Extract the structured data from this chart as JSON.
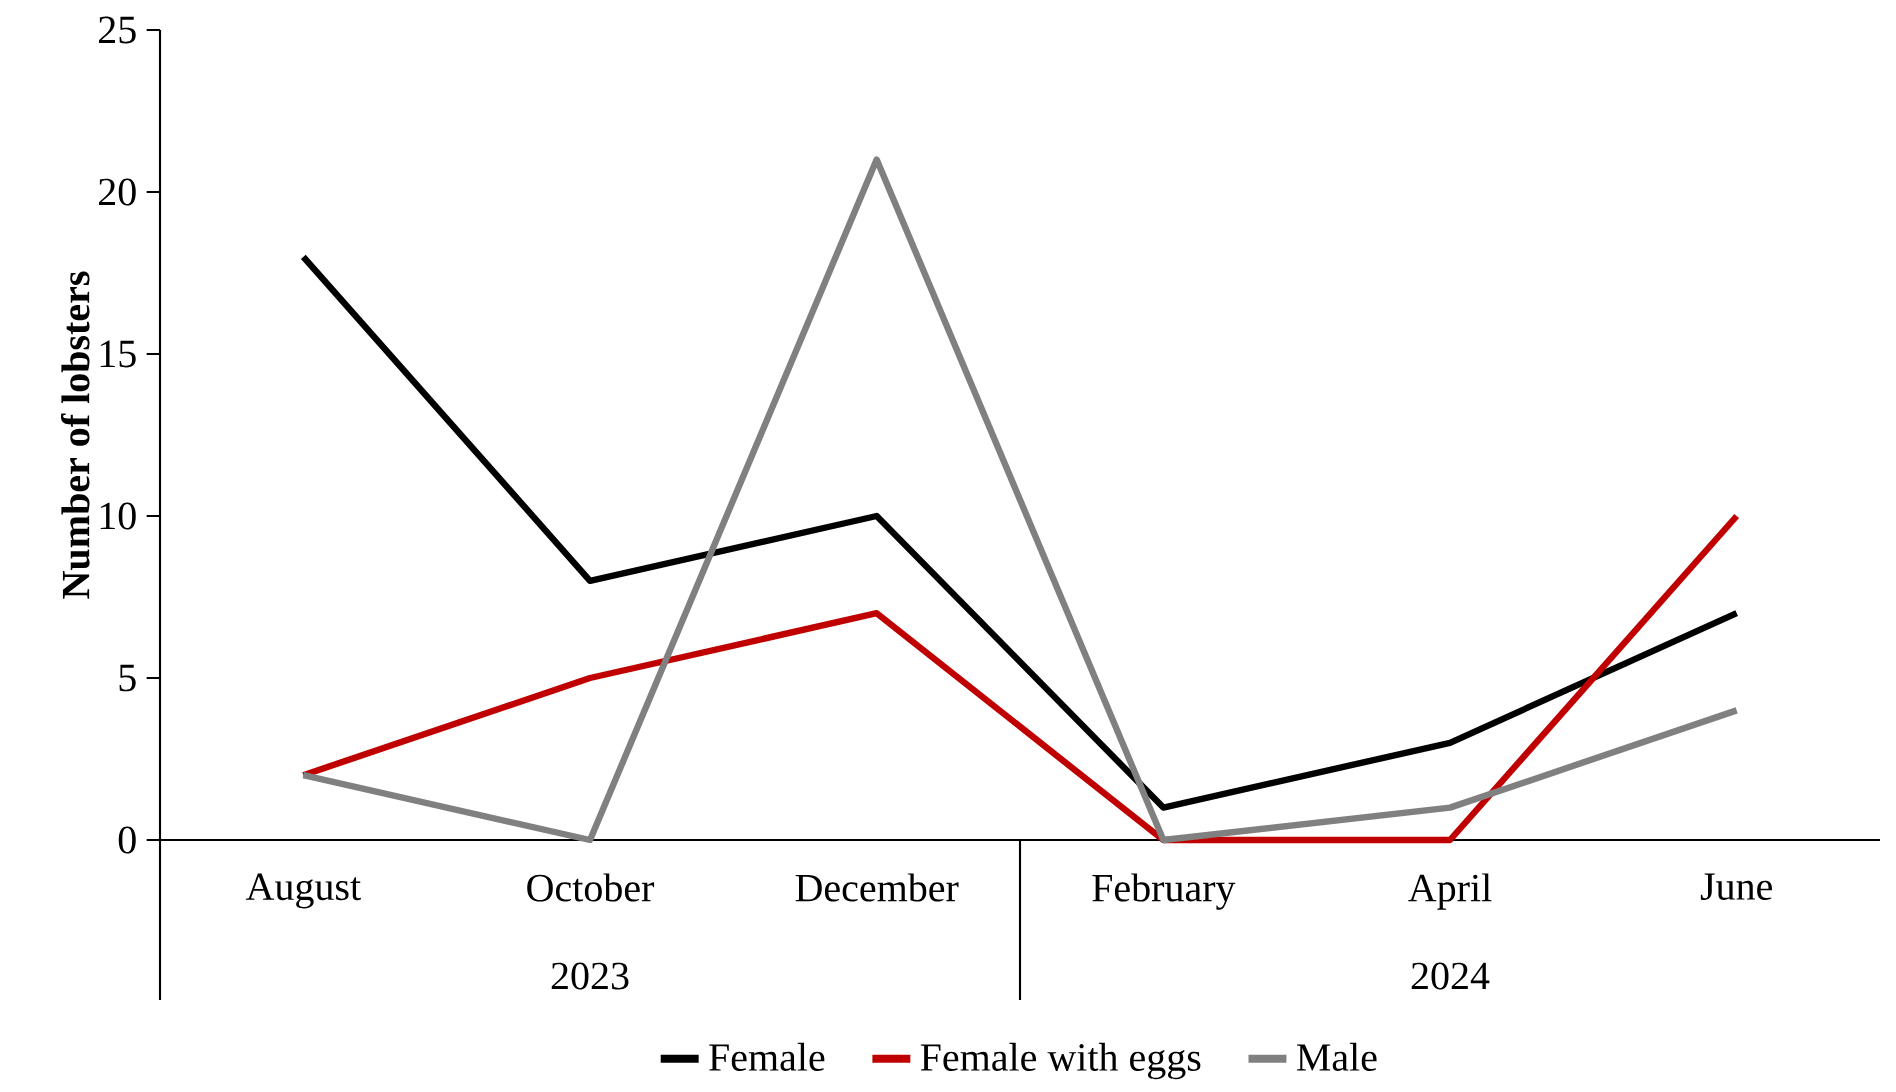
{
  "chart_data": {
    "type": "line",
    "ylabel": "Number of lobsters",
    "categories": [
      "August",
      "October",
      "December",
      "February",
      "April",
      "June"
    ],
    "series": [
      {
        "name": "Female",
        "color": "#000000",
        "values": [
          18,
          8,
          10,
          1,
          3,
          7
        ]
      },
      {
        "name": "Female with eggs",
        "color": "#c00000",
        "values": [
          2,
          5,
          7,
          0,
          0,
          10
        ]
      },
      {
        "name": "Male",
        "color": "#808080",
        "values": [
          2,
          0,
          21,
          0,
          1,
          4
        ]
      }
    ],
    "annotations": [
      "2023",
      "2024"
    ],
    "ylim": [
      0,
      25
    ],
    "yticks": [
      0,
      5,
      10,
      15,
      20,
      25
    ],
    "grid": false,
    "legend": "bottom",
    "marker": "none",
    "line_style": "solid"
  }
}
